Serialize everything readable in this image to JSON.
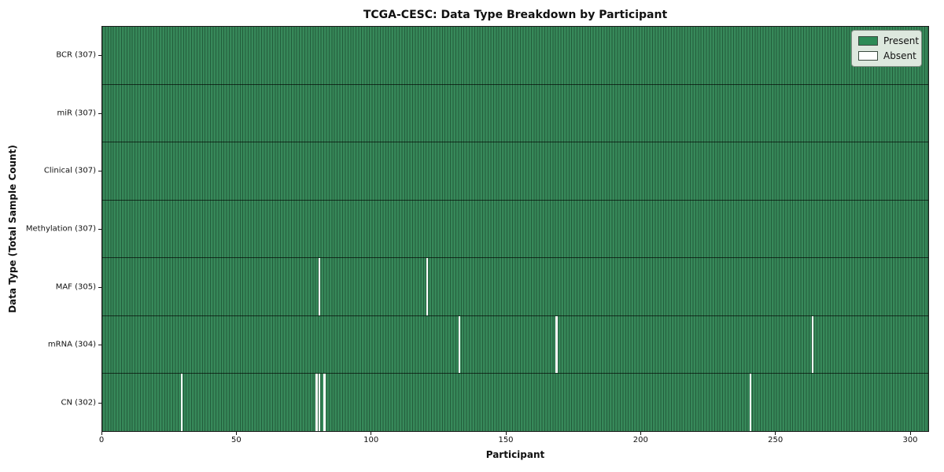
{
  "title": "TCGA-CESC: Data Type Breakdown by Participant",
  "xlabel": "Participant",
  "ylabel": "Data Type (Total Sample Count)",
  "legend": {
    "present_label": "Present",
    "absent_label": "Absent"
  },
  "colors": {
    "present": "#2e8b57",
    "present_fill": "#37895a",
    "cell_edge": "#235c3b",
    "absent": "#ffffff",
    "row_divider": "rgba(0,0,0,0.65)"
  },
  "chart_data": {
    "type": "heatmap",
    "title": "TCGA-CESC: Data Type Breakdown by Participant",
    "xlabel": "Participant",
    "ylabel": "Data Type (Total Sample Count)",
    "n_participants": 307,
    "x_range": [
      0,
      307
    ],
    "x_ticks": [
      0,
      50,
      100,
      150,
      200,
      250,
      300
    ],
    "grid": false,
    "legend_position": "upper right",
    "legend_entries": [
      {
        "label": "Present",
        "color": "#2e8b57"
      },
      {
        "label": "Absent",
        "color": "#ffffff"
      }
    ],
    "rows": [
      {
        "label": "BCR (307)",
        "data_type": "BCR",
        "total_samples": 307,
        "absent_participants": []
      },
      {
        "label": "miR (307)",
        "data_type": "miR",
        "total_samples": 307,
        "absent_participants": []
      },
      {
        "label": "Clinical (307)",
        "data_type": "Clinical",
        "total_samples": 307,
        "absent_participants": []
      },
      {
        "label": "Methylation (307)",
        "data_type": "Methylation",
        "total_samples": 307,
        "absent_participants": []
      },
      {
        "label": "MAF (305)",
        "data_type": "MAF",
        "total_samples": 305,
        "absent_participants": [
          80,
          120
        ]
      },
      {
        "label": "mRNA (304)",
        "data_type": "mRNA",
        "total_samples": 304,
        "absent_participants": [
          132,
          168,
          263
        ]
      },
      {
        "label": "CN (302)",
        "data_type": "CN",
        "total_samples": 302,
        "absent_participants": [
          29,
          79,
          80,
          82,
          240
        ]
      }
    ]
  }
}
